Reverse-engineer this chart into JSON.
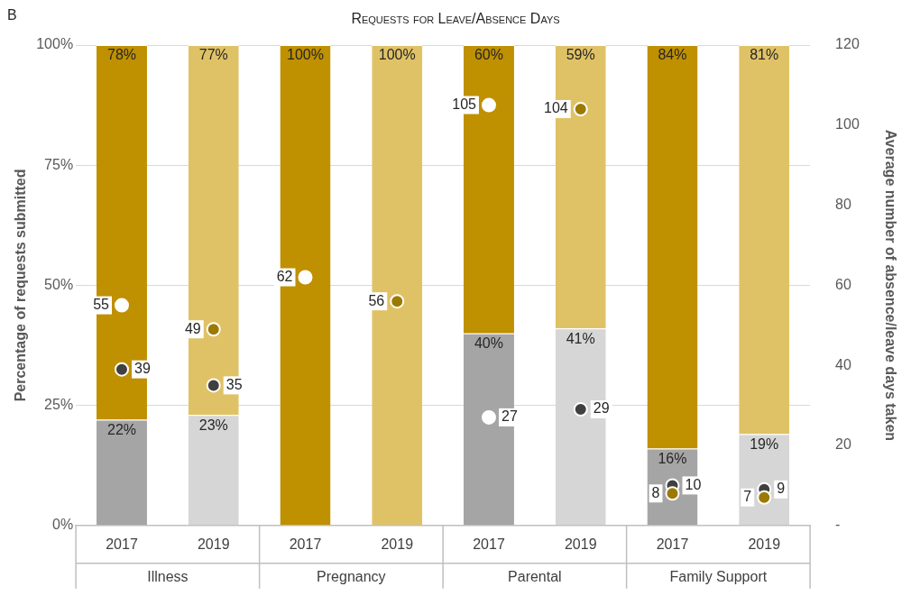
{
  "chart_data": {
    "type": "bar",
    "title": "Requests for Leave/Absence Days",
    "subtitle": "B",
    "categories": [
      "2017",
      "2019",
      "2017",
      "2019",
      "2017",
      "2019",
      "2017",
      "2019"
    ],
    "annotations": [
      "Illness",
      "Pregnancy",
      "Parental",
      "Family Support"
    ],
    "stacked": true,
    "series": [
      {
        "colors": [
          "#a5a5a5",
          "#d6d6d6",
          "#a5a5a5",
          "#d6d6d6",
          "#a5a5a5",
          "#d6d6d6",
          "#a5a5a5",
          "#d6d6d6"
        ],
        "values": [
          22,
          23,
          0,
          0,
          40,
          41,
          16,
          19
        ],
        "value_labels": [
          "22%",
          "23%",
          null,
          null,
          "40%",
          "41%",
          "16%",
          "19%"
        ]
      },
      {
        "colors": [
          "#bf9000",
          "#e0c266",
          "#bf9000",
          "#e0c266",
          "#bf9000",
          "#e0c266",
          "#bf9000",
          "#e0c266"
        ],
        "values": [
          78,
          77,
          100,
          100,
          60,
          59,
          84,
          81
        ],
        "value_labels": [
          "78%",
          "77%",
          "100%",
          "100%",
          "60%",
          "59%",
          "84%",
          "81%"
        ]
      },
      {
        "type": "scatter",
        "axis": "y2",
        "colors": [
          "#ffffff",
          "#9c7a00",
          "#ffffff",
          "#9c7a00",
          "#ffffff",
          "#9c7a00",
          "#9c7a00",
          "#9c7a00"
        ],
        "values": [
          55,
          49,
          62,
          56,
          105,
          104,
          8,
          7
        ],
        "value_labels": [
          "55",
          "49",
          "62",
          "56",
          "105",
          "104",
          "8",
          "7"
        ]
      },
      {
        "type": "scatter",
        "axis": "y2",
        "colors": [
          "#404040",
          "#404040",
          null,
          null,
          "#ffffff",
          "#404040",
          "#404040",
          "#404040"
        ],
        "values": [
          39,
          35,
          null,
          null,
          27,
          29,
          10,
          9
        ],
        "value_labels": [
          "39",
          "35",
          null,
          null,
          "27",
          "29",
          "10",
          "9"
        ]
      }
    ],
    "ylabel": "Percentage of requests submitted",
    "y2label": "Average number of absence/leave days taken",
    "ylim": [
      0,
      100
    ],
    "yticks": [
      {
        "value": 0,
        "label": "0%"
      },
      {
        "value": 25,
        "label": "25%"
      },
      {
        "value": 50,
        "label": "50%"
      },
      {
        "value": 75,
        "label": "75%"
      },
      {
        "value": 100,
        "label": "100%"
      }
    ],
    "y2lim": [
      0,
      120
    ],
    "y2ticks": [
      {
        "value": 0,
        "label": "-"
      },
      20,
      40,
      60,
      80,
      100,
      120
    ],
    "grid": "y",
    "marker": "circle",
    "legend": false
  }
}
